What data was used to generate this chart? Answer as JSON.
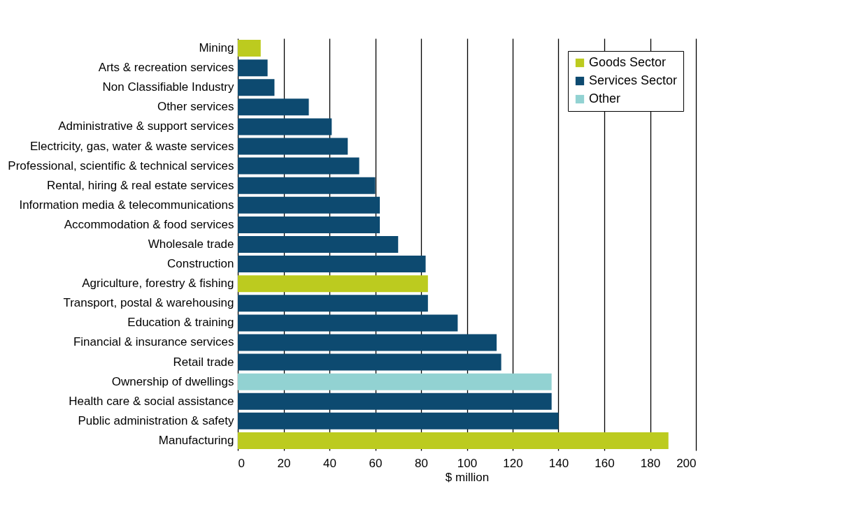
{
  "chart_data": {
    "type": "bar",
    "orientation": "horizontal",
    "xlabel": "$ million",
    "categories": [
      "Mining",
      "Arts & recreation services",
      "Non Classifiable Industry",
      "Other services",
      "Administrative & support services",
      "Electricity, gas, water & waste services",
      "Professional, scientific & technical services",
      "Rental, hiring & real estate services",
      "Information media & telecommunications",
      "Accommodation & food services",
      "Wholesale trade",
      "Construction",
      "Agriculture, forestry & fishing",
      "Transport, postal & warehousing",
      "Education & training",
      "Financial & insurance services",
      "Retail trade",
      "Ownership of dwellings",
      "Health care & social assistance",
      "Public administration & safety",
      "Manufacturing"
    ],
    "series": [
      {
        "name": "Goods Sector",
        "color": "#bccb1f",
        "values": [
          10,
          null,
          null,
          null,
          null,
          null,
          null,
          null,
          null,
          null,
          null,
          null,
          83,
          null,
          null,
          null,
          null,
          null,
          null,
          null,
          188
        ]
      },
      {
        "name": "Services Sector",
        "color": "#0d4a70",
        "values": [
          null,
          13,
          16,
          31,
          41,
          48,
          53,
          60,
          62,
          62,
          70,
          82,
          null,
          83,
          96,
          113,
          115,
          null,
          137,
          140,
          null
        ]
      },
      {
        "name": "Other",
        "color": "#92d2d2",
        "values": [
          null,
          null,
          null,
          null,
          null,
          null,
          null,
          null,
          null,
          null,
          null,
          null,
          null,
          null,
          null,
          null,
          null,
          137,
          null,
          null,
          null
        ]
      }
    ],
    "xlim": [
      0,
      200
    ],
    "xticks": [
      0,
      20,
      40,
      60,
      80,
      100,
      120,
      140,
      160,
      180,
      200
    ],
    "grid": "x",
    "legend": "top right"
  }
}
